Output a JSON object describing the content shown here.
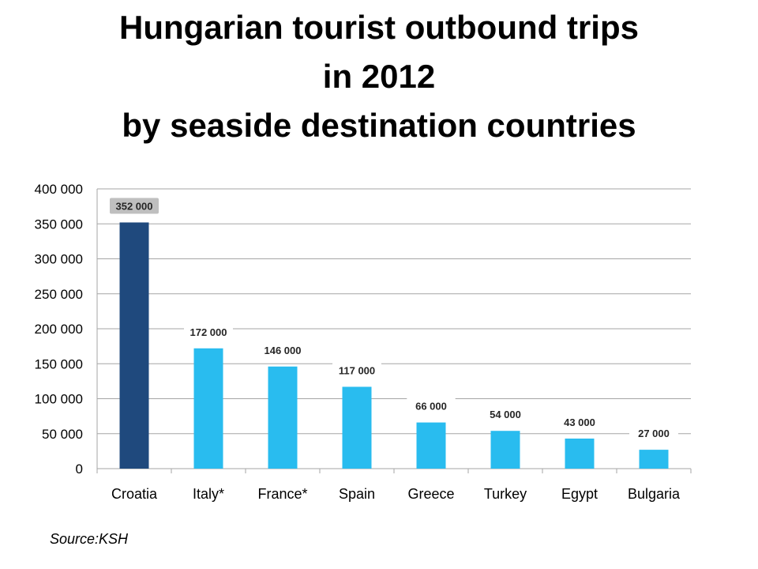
{
  "title_lines": [
    "Hungarian tourist outbound trips",
    "in 2012",
    "by seaside destination countries"
  ],
  "source": "Source:KSH",
  "colors": {
    "highlight": "#1F497D",
    "bar": "#29BCEF",
    "label_bg_highlight": "#BFBFBF",
    "grid": "#A6A6A6"
  },
  "chart_data": {
    "type": "bar",
    "title": "Hungarian tourist outbound trips in 2012 by seaside destination countries",
    "categories": [
      "Croatia",
      "Italy*",
      "France*",
      "Spain",
      "Greece",
      "Turkey",
      "Egypt",
      "Bulgaria"
    ],
    "values": [
      352000,
      172000,
      146000,
      117000,
      66000,
      54000,
      43000,
      27000
    ],
    "data_labels": [
      "352 000",
      "172 000",
      "146 000",
      "117 000",
      "66 000",
      "54 000",
      "43 000",
      "27 000"
    ],
    "highlight_index": 0,
    "ylim": [
      0,
      400000
    ],
    "yticks": [
      0,
      50000,
      100000,
      150000,
      200000,
      250000,
      300000,
      350000,
      400000
    ],
    "ytick_labels": [
      "0",
      "50 000",
      "100 000",
      "150 000",
      "200 000",
      "250 000",
      "300 000",
      "350 000",
      "400 000"
    ],
    "xlabel": "",
    "ylabel": "",
    "grid": true,
    "legend": "none"
  }
}
